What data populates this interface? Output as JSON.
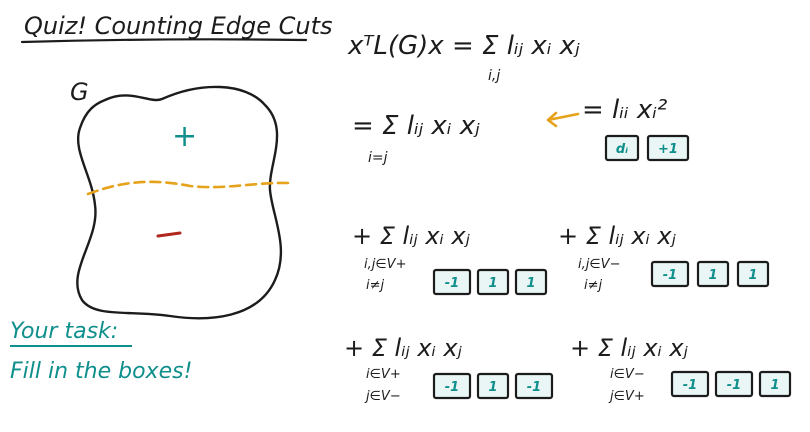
{
  "title": "Quiz! Counting Edge Cuts",
  "graph": {
    "label": "G",
    "plus_sign": "+",
    "minus_sign": "−"
  },
  "task": {
    "line1": "Your task:",
    "line2": "Fill in the boxes!"
  },
  "equations": {
    "main": "xᵀL(G)x = Σ lᵢⱼ xᵢ xⱼ",
    "main_sub": "i,j",
    "diag_left": "= Σ lᵢⱼ xᵢ xⱼ",
    "diag_sub": "i=j",
    "diag_right": "= lᵢᵢ xᵢ²",
    "diag_boxes": [
      "dᵢ",
      "+1"
    ],
    "term1": "+ Σ lᵢⱼ xᵢ xⱼ",
    "term1_sub1": "i,j∈V+",
    "term1_sub2": "i≠j",
    "term1_boxes": [
      "-1",
      "1",
      "1"
    ],
    "term2": "+ Σ lᵢⱼ xᵢ xⱼ",
    "term2_sub1": "i,j∈V−",
    "term2_sub2": "i≠j",
    "term2_boxes": [
      "-1",
      "1",
      "1"
    ],
    "term3": "+ Σ lᵢⱼ xᵢ xⱼ",
    "term3_sub1": "i∈V+",
    "term3_sub2": "j∈V−",
    "term3_boxes": [
      "-1",
      "1",
      "-1"
    ],
    "term4": "+ Σ lᵢⱼ xᵢ xⱼ",
    "term4_sub1": "i∈V−",
    "term4_sub2": "j∈V+",
    "term4_boxes": [
      "-1",
      "-1",
      "1"
    ]
  },
  "colors": {
    "ink": "#1c1c1c",
    "teal": "#0f8f8c",
    "cut_line": "#e6a21a",
    "minus_mark": "#b3261e"
  }
}
